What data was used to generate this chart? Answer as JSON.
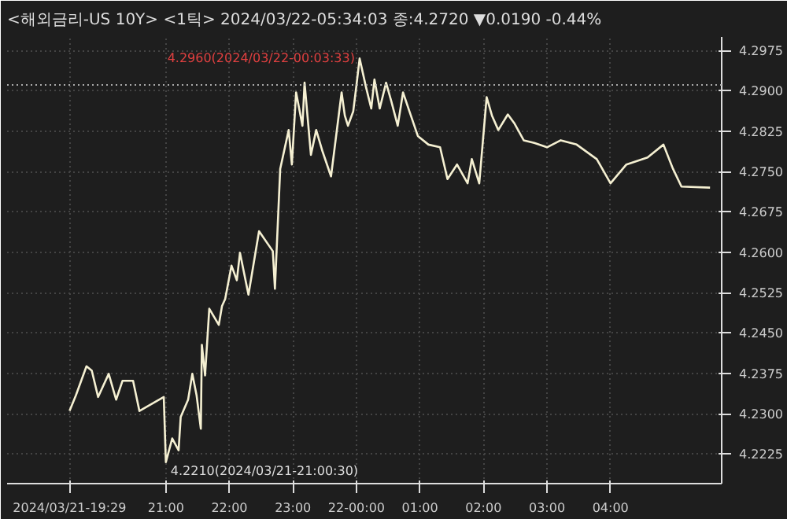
{
  "chart_data": {
    "type": "line",
    "title": "<해외금리-US 10Y> <1틱> 2024/03/22-05:34:03 종:4.2720 ▼0.0190 -0.44%",
    "x": [
      "2024-03-21T19:29",
      "2024-03-21T19:35",
      "2024-03-21T19:45",
      "2024-03-21T19:50",
      "2024-03-21T19:56",
      "2024-03-21T20:06",
      "2024-03-21T20:13",
      "2024-03-21T20:19",
      "2024-03-21T20:29",
      "2024-03-21T20:35",
      "2024-03-21T20:58",
      "2024-03-21T21:00",
      "2024-03-21T21:06",
      "2024-03-21T21:12",
      "2024-03-21T21:14",
      "2024-03-21T21:21",
      "2024-03-21T21:25",
      "2024-03-21T21:29",
      "2024-03-21T21:33",
      "2024-03-21T21:34",
      "2024-03-21T21:37",
      "2024-03-21T21:41",
      "2024-03-21T21:50",
      "2024-03-21T21:53",
      "2024-03-21T21:56",
      "2024-03-21T22:02",
      "2024-03-21T22:07",
      "2024-03-21T22:10",
      "2024-03-21T22:18",
      "2024-03-21T22:28",
      "2024-03-21T22:41",
      "2024-03-21T22:43",
      "2024-03-21T22:48",
      "2024-03-21T22:56",
      "2024-03-21T22:59",
      "2024-03-21T23:03",
      "2024-03-21T23:09",
      "2024-03-21T23:11",
      "2024-03-21T23:17",
      "2024-03-21T23:22",
      "2024-03-21T23:28",
      "2024-03-21T23:36",
      "2024-03-21T23:46",
      "2024-03-21T23:49",
      "2024-03-21T23:52",
      "2024-03-21T23:57",
      "2024-03-22T00:00",
      "2024-03-22T00:03",
      "2024-03-22T00:09",
      "2024-03-22T00:14",
      "2024-03-22T00:17",
      "2024-03-22T00:22",
      "2024-03-22T00:28",
      "2024-03-22T00:33",
      "2024-03-22T00:39",
      "2024-03-22T00:44",
      "2024-03-22T00:50",
      "2024-03-22T00:58",
      "2024-03-22T01:08",
      "2024-03-22T01:19",
      "2024-03-22T01:26",
      "2024-03-22T01:35",
      "2024-03-22T01:45",
      "2024-03-22T01:49",
      "2024-03-22T01:56",
      "2024-03-22T02:03",
      "2024-03-22T02:08",
      "2024-03-22T02:14",
      "2024-03-22T02:23",
      "2024-03-22T02:29",
      "2024-03-22T02:38",
      "2024-03-22T02:48",
      "2024-03-22T03:00",
      "2024-03-22T03:13",
      "2024-03-22T03:28",
      "2024-03-22T03:47",
      "2024-03-22T04:00",
      "2024-03-22T04:15",
      "2024-03-22T04:35",
      "2024-03-22T04:50",
      "2024-03-22T04:59",
      "2024-03-22T05:07",
      "2024-03-22T05:34"
    ],
    "series": [
      {
        "color": "#f5f0d2",
        "values": [
          4.2305,
          4.2334,
          4.2388,
          4.238,
          4.2331,
          4.2374,
          4.2326,
          4.2361,
          4.2361,
          4.2305,
          4.2331,
          4.221,
          4.2254,
          4.2232,
          4.2294,
          4.2326,
          4.2374,
          4.2334,
          4.2272,
          4.2428,
          4.2371,
          4.2495,
          4.2465,
          4.25,
          4.2513,
          4.2575,
          4.2548,
          4.2599,
          4.2521,
          4.2639,
          4.2602,
          4.2532,
          4.2755,
          4.2827,
          4.2763,
          4.2897,
          4.2835,
          4.2915,
          4.2781,
          4.2827,
          4.2787,
          4.2741,
          4.2897,
          4.2854,
          4.2835,
          4.2862,
          4.291,
          4.296,
          4.2907,
          4.2867,
          4.2921,
          4.2867,
          4.2915,
          4.288,
          4.2835,
          4.2897,
          4.2862,
          4.2816,
          4.28,
          4.2795,
          4.2736,
          4.2763,
          4.2728,
          4.2773,
          4.2728,
          4.2888,
          4.2854,
          4.2827,
          4.2856,
          4.284,
          4.2808,
          4.2803,
          4.2795,
          4.2808,
          4.28,
          4.2773,
          4.2728,
          4.2763,
          4.2776,
          4.28,
          4.2755,
          4.2722,
          4.272
        ]
      }
    ],
    "xlim": [
      "2024-03-21T18:30",
      "2024-03-22T05:45"
    ],
    "ylim": [
      4.217,
      4.3
    ],
    "xticks": [
      {
        "value": "2024-03-21T19:29",
        "label": "2024/03/21-19:29"
      },
      {
        "value": "2024-03-21T21:00",
        "label": "21:00"
      },
      {
        "value": "2024-03-21T22:00",
        "label": "22:00"
      },
      {
        "value": "2024-03-21T23:00",
        "label": "23:00"
      },
      {
        "value": "2024-03-22T00:00",
        "label": "22-00:00"
      },
      {
        "value": "2024-03-22T01:00",
        "label": "01:00"
      },
      {
        "value": "2024-03-22T02:00",
        "label": "02:00"
      },
      {
        "value": "2024-03-22T03:00",
        "label": "03:00"
      },
      {
        "value": "2024-03-22T04:00",
        "label": "04:00"
      }
    ],
    "yticks": [
      {
        "value": 4.2225,
        "label": "4.2225"
      },
      {
        "value": 4.23,
        "label": "4.2300"
      },
      {
        "value": 4.2375,
        "label": "4.2375"
      },
      {
        "value": 4.245,
        "label": "4.2450"
      },
      {
        "value": 4.2525,
        "label": "4.2525"
      },
      {
        "value": 4.26,
        "label": "4.2600"
      },
      {
        "value": 4.2675,
        "label": "4.2675"
      },
      {
        "value": 4.275,
        "label": "4.2750"
      },
      {
        "value": 4.2825,
        "label": "4.2825"
      },
      {
        "value": 4.29,
        "label": "4.2900"
      },
      {
        "value": 4.2975,
        "label": "4.2975"
      }
    ],
    "annotations": [
      {
        "text": "4.2960(2024/03/22-00:03:33)",
        "x": "2024-03-22T00:03",
        "y": 4.296
      },
      {
        "text": "4.2210(2024/03/21-21:00:30)",
        "x": "2024-03-21T21:00",
        "y": 4.221
      }
    ],
    "ref_lines": [
      {
        "axis": "y",
        "value": 4.2911,
        "color": "#aaaaaa",
        "line_style": "dotted"
      }
    ],
    "grid": true,
    "line_style": "solid",
    "marker": "none"
  }
}
